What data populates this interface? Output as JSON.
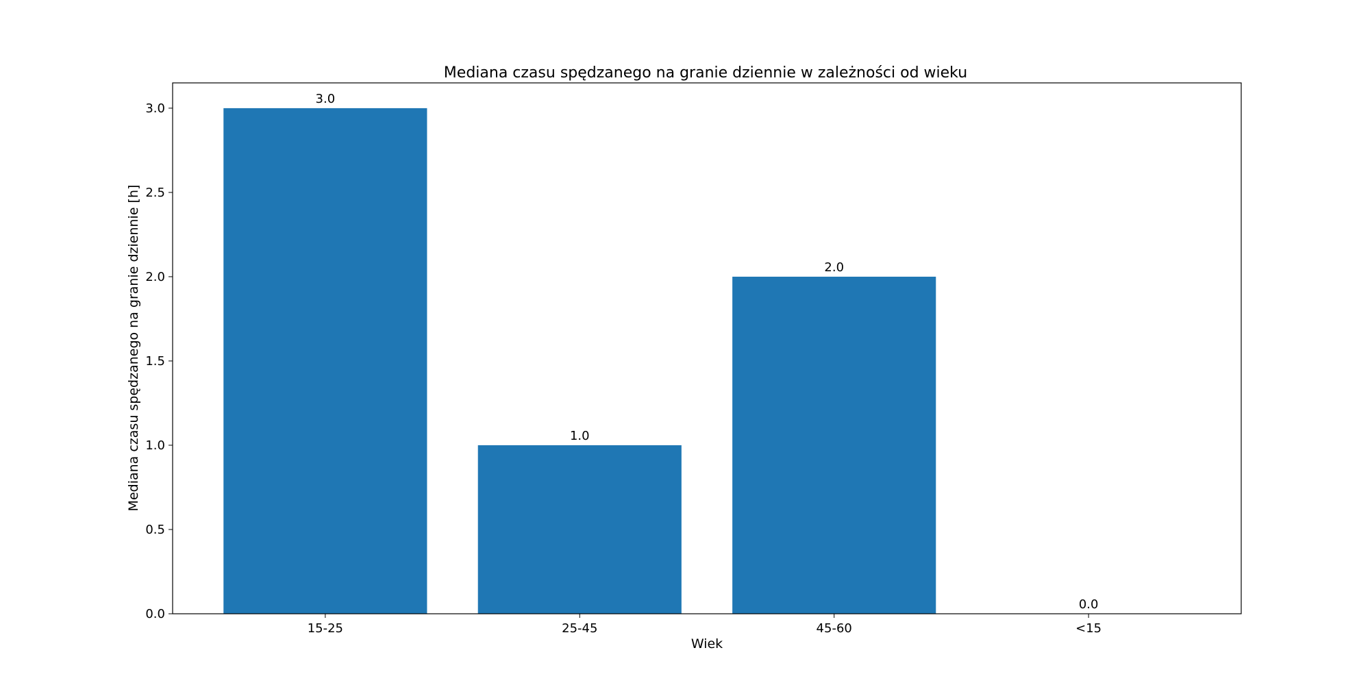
{
  "chart_data": {
    "type": "bar",
    "title": "Mediana czasu spędzanego na granie dziennie w zależności od wieku",
    "xlabel": "Wiek",
    "ylabel": "Mediana czasu spędzanego na granie dziennie [h]",
    "categories": [
      "15-25",
      "25-45",
      "45-60",
      "<15"
    ],
    "values": [
      3.0,
      1.0,
      2.0,
      0.0
    ],
    "data_labels": [
      "3.0",
      "1.0",
      "2.0",
      "0.0"
    ],
    "ylim": [
      0,
      3.15
    ],
    "yticks": [
      0.0,
      0.5,
      1.0,
      1.5,
      2.0,
      2.5,
      3.0
    ],
    "ytick_labels": [
      "0.0",
      "0.5",
      "1.0",
      "1.5",
      "2.0",
      "2.5",
      "3.0"
    ],
    "grid": false,
    "bar_color": "#1f77b4"
  }
}
